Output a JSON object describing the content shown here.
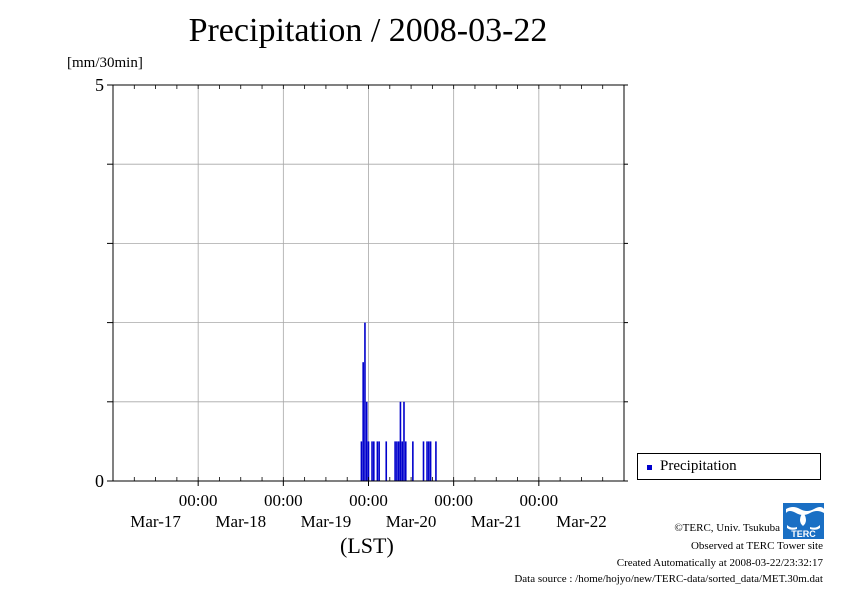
{
  "chart_data": {
    "type": "bar",
    "title": "Precipitation / 2008-03-22",
    "ylabel": "[mm/30min]",
    "xlabel": "(LST)",
    "ylim": [
      0,
      5
    ],
    "y_tick_labels": [
      "5",
      "0"
    ],
    "xlim": [
      "2008-03-16T00:00",
      "2008-03-22T00:00"
    ],
    "x_tick_labels": [
      {
        "time": "00:00",
        "date": "Mar-17"
      },
      {
        "time": "00:00",
        "date": "Mar-18"
      },
      {
        "time": "00:00",
        "date": "Mar-19"
      },
      {
        "time": "00:00",
        "date": "Mar-20"
      },
      {
        "time": "00:00",
        "date": "Mar-21"
      },
      {
        "time": "00:00",
        "date": "Mar-22"
      }
    ],
    "grid": true,
    "legend_position": "bottom-right outside",
    "series": [
      {
        "name": "Precipitation",
        "color": "#0000cc",
        "points": [
          [
            "2008-03-18T22:00",
            0.5
          ],
          [
            "2008-03-18T22:30",
            1.5
          ],
          [
            "2008-03-18T23:00",
            2.0
          ],
          [
            "2008-03-18T23:30",
            1.0
          ],
          [
            "2008-03-19T00:00",
            0.5
          ],
          [
            "2008-03-19T01:00",
            0.5
          ],
          [
            "2008-03-19T01:30",
            0.5
          ],
          [
            "2008-03-19T02:30",
            0.5
          ],
          [
            "2008-03-19T03:00",
            0.5
          ],
          [
            "2008-03-19T05:00",
            0.5
          ],
          [
            "2008-03-19T07:30",
            0.5
          ],
          [
            "2008-03-19T08:00",
            0.5
          ],
          [
            "2008-03-19T08:30",
            0.5
          ],
          [
            "2008-03-19T09:00",
            1.0
          ],
          [
            "2008-03-19T09:30",
            0.5
          ],
          [
            "2008-03-19T10:00",
            1.0
          ],
          [
            "2008-03-19T10:30",
            0.5
          ],
          [
            "2008-03-19T12:30",
            0.5
          ],
          [
            "2008-03-19T15:30",
            0.5
          ],
          [
            "2008-03-19T16:30",
            0.5
          ],
          [
            "2008-03-19T17:00",
            0.5
          ],
          [
            "2008-03-19T17:30",
            0.5
          ],
          [
            "2008-03-19T19:00",
            0.5
          ]
        ]
      }
    ]
  },
  "legend": {
    "label": "Precipitation"
  },
  "credits": {
    "copyright": "©TERC, Univ. Tsukuba",
    "observed": "Observed at TERC Tower site",
    "created": "Created Automatically at 2008-03-22/23:32:17",
    "source": "Data source : /home/hojyo/new/TERC-data/sorted_data/MET.30m.dat"
  },
  "logo": {
    "text": "TERC"
  }
}
